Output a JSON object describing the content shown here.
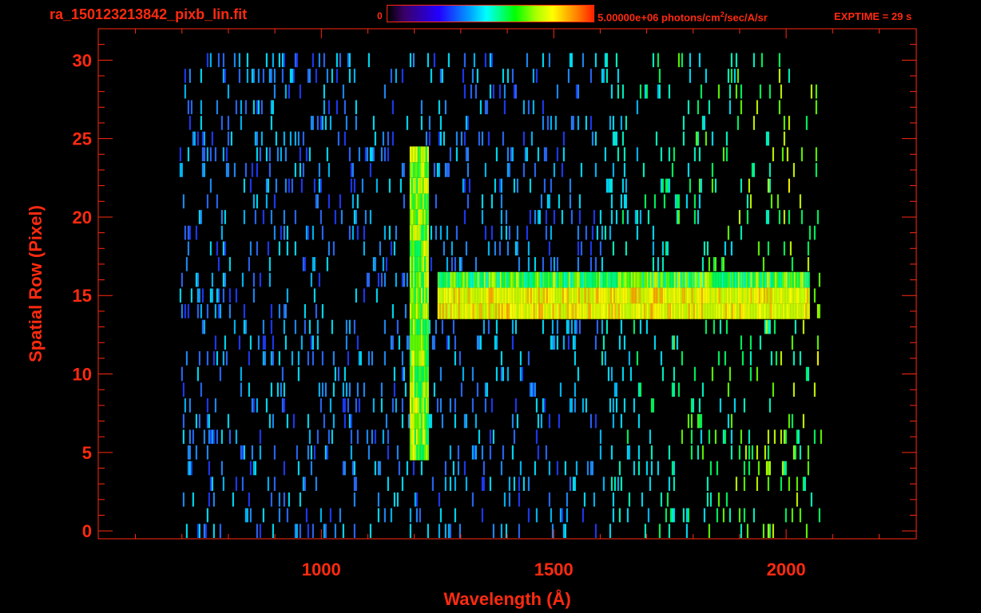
{
  "header": {
    "file_title": "ra_150123213842_pixb_lin.fit",
    "colorbar_min": "0",
    "colorbar_max_value": "5.00000e+06 photons/cm",
    "colorbar_max_sup": "2",
    "colorbar_max_rest": "/sec/A/sr",
    "exptime": "EXPTIME = 29 s"
  },
  "colors": {
    "axis": "#ff2a10",
    "background": "#000000"
  },
  "chart_data": {
    "type": "heatmap",
    "title": "ra_150123213842_pixb_lin.fit",
    "xlabel": "Wavelength (Å)",
    "ylabel": "Spatial Row (Pixel)",
    "xlim": [
      520,
      2280
    ],
    "ylim": [
      -0.5,
      32
    ],
    "x_ticks": [
      1000,
      1500,
      2000
    ],
    "y_ticks": [
      0,
      5,
      10,
      15,
      20,
      25,
      30
    ],
    "colorbar": {
      "min": 0,
      "max": 5000000,
      "units": "photons/cm^2/sec/A/sr"
    },
    "colormap": "rainbow",
    "data_region": {
      "x": [
        695,
        2075
      ],
      "y": [
        0,
        30
      ]
    },
    "features": [
      {
        "kind": "emission-band",
        "axis": "horizontal",
        "wavelength_range": [
          1250,
          2050
        ],
        "rows": [
          14,
          16
        ]
      },
      {
        "kind": "emission-line",
        "axis": "vertical",
        "wavelength_range": [
          1190,
          1230
        ],
        "rows": [
          5,
          24
        ]
      }
    ]
  }
}
